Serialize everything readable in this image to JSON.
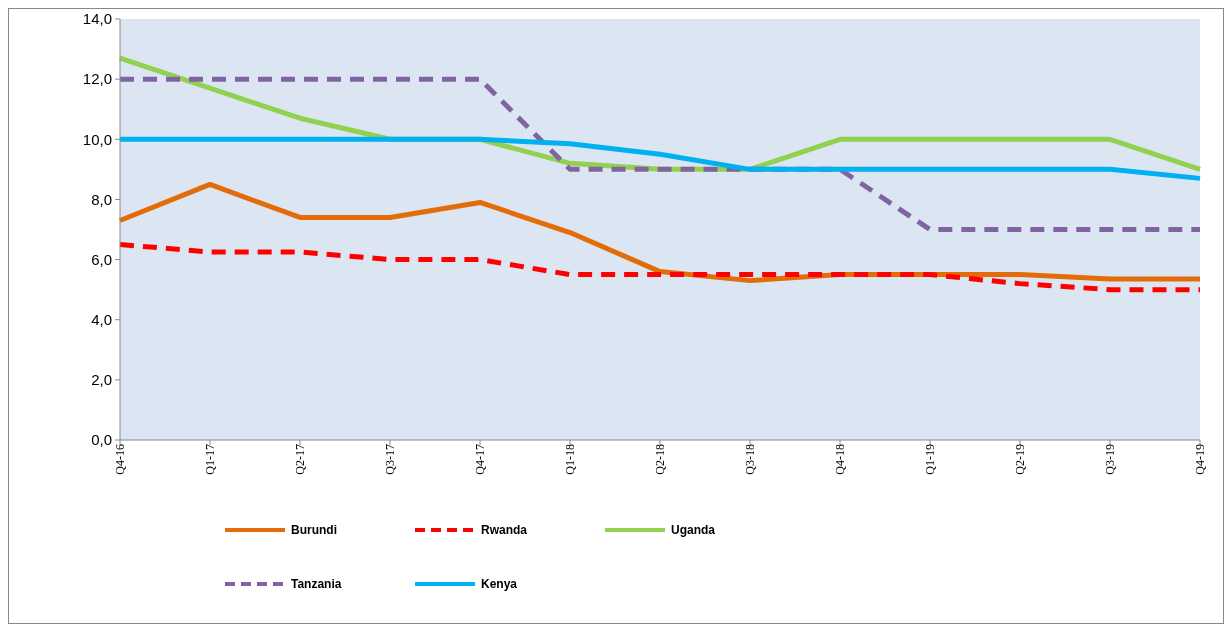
{
  "chart_data": {
    "type": "line",
    "categories": [
      "Q4-16",
      "Q1-17",
      "Q2-17",
      "Q3-17",
      "Q4-17",
      "Q1-18",
      "Q2-18",
      "Q3-18",
      "Q4-18",
      "Q1-19",
      "Q2-19",
      "Q3-19",
      "Q4-19"
    ],
    "ylim": [
      0,
      14
    ],
    "yticks": [
      {
        "value": 0,
        "label": "0,0"
      },
      {
        "value": 2,
        "label": "2,0"
      },
      {
        "value": 4,
        "label": "4,0"
      },
      {
        "value": 6,
        "label": "6,0"
      },
      {
        "value": 8,
        "label": "8,0"
      },
      {
        "value": 10,
        "label": "10,0"
      },
      {
        "value": 12,
        "label": "12,0"
      },
      {
        "value": 14,
        "label": "14,0"
      }
    ],
    "legend": "bottom",
    "series": [
      {
        "name": "Burundi",
        "color": "#e36c09",
        "line_style": "solid",
        "values": [
          7.3,
          8.5,
          7.4,
          7.4,
          7.9,
          6.9,
          5.6,
          5.3,
          5.5,
          5.5,
          5.5,
          5.35,
          5.35
        ]
      },
      {
        "name": "Rwanda",
        "color": "#ff0000",
        "line_style": "dashed",
        "values": [
          6.5,
          6.25,
          6.25,
          6.0,
          6.0,
          5.5,
          5.5,
          5.5,
          5.5,
          5.5,
          5.2,
          5.0,
          5.0
        ]
      },
      {
        "name": "Uganda",
        "color": "#92d050",
        "line_style": "solid",
        "values": [
          12.7,
          11.7,
          10.7,
          10.0,
          10.0,
          9.2,
          9.0,
          9.0,
          10.0,
          10.0,
          10.0,
          10.0,
          9.0
        ]
      },
      {
        "name": "Tanzania",
        "color": "#8064a2",
        "line_style": "dashed",
        "values": [
          12,
          12,
          12,
          12,
          12,
          9,
          9,
          9,
          9,
          7,
          7,
          7,
          7
        ]
      },
      {
        "name": "Kenya",
        "color": "#00b0f0",
        "line_style": "solid",
        "values": [
          10,
          10,
          10,
          10,
          10,
          9.85,
          9.5,
          9,
          9,
          9,
          9,
          9,
          8.7
        ]
      }
    ]
  }
}
